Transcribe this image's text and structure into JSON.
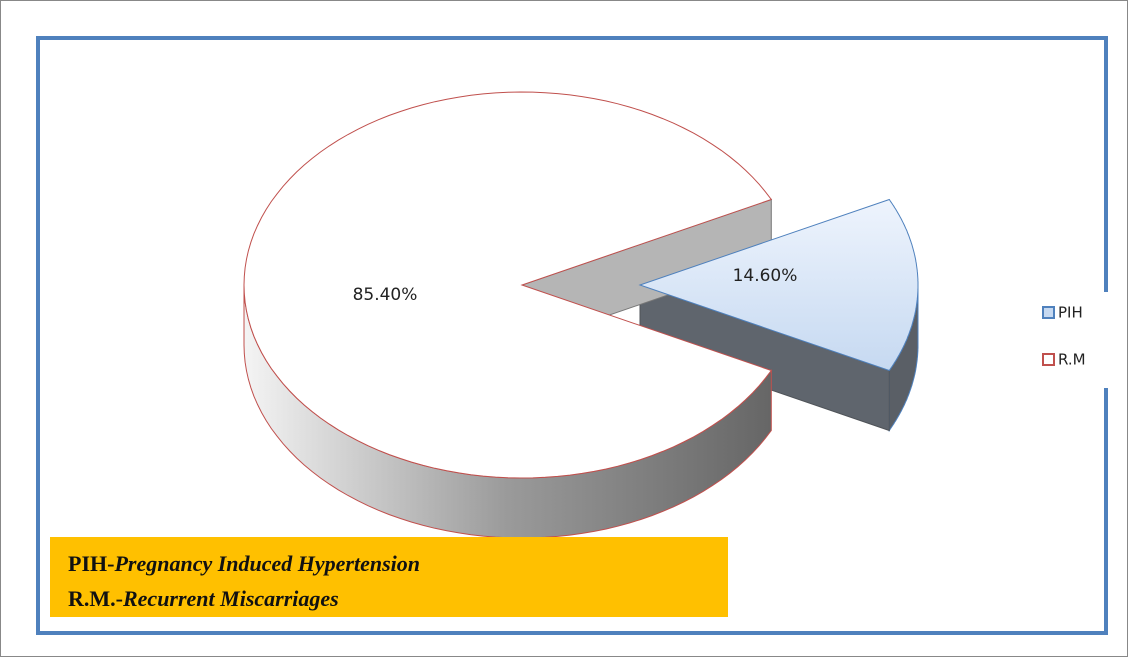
{
  "chart_data": {
    "type": "pie",
    "categories": [
      "PIH",
      "R.M"
    ],
    "values": [
      14.6,
      85.4
    ],
    "value_labels": [
      "14.60%",
      "85.40%"
    ],
    "colors": [
      "#c6d9f1",
      "#ffffff"
    ],
    "edgecolors": [
      "#4f81bd",
      "#c0504d"
    ],
    "legend": "right",
    "notes": [
      {
        "term": "PIH-",
        "definition": "Pregnancy Induced Hypertension"
      },
      {
        "term": "R.M.-",
        "definition": "Recurrent Miscarriages"
      }
    ]
  }
}
